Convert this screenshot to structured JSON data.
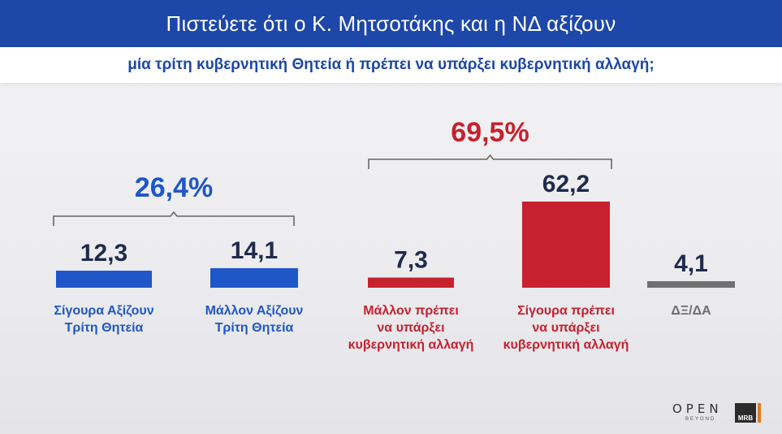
{
  "title": "Πιστεύετε ότι ο Κ. Μητσοτάκης και η ΝΔ αξίζουν",
  "subtitle": "μία τρίτη κυβερνητική Θητεία ή πρέπει να υπάρξει κυβερνητική αλλαγή;",
  "colors": {
    "blue": "#1f56c8",
    "red": "#c7202e",
    "gray": "#6f6f6f",
    "brand": "#1d47a8"
  },
  "chart_data": {
    "type": "bar",
    "categories": [
      [
        "Σίγουρα Αξίζουν",
        "Τρίτη Θητεία"
      ],
      [
        "Μάλλον Αξίζουν",
        "Τρίτη Θητεία"
      ],
      [
        "Μάλλον πρέπει",
        "να υπάρξει",
        "κυβερνητική αλλαγή"
      ],
      [
        "Σίγουρα πρέπει",
        "να υπάρξει",
        "κυβερνητική αλλαγή"
      ],
      [
        "ΔΞ/ΔΑ"
      ]
    ],
    "values": [
      12.3,
      14.1,
      7.3,
      62.2,
      4.1
    ],
    "value_labels": [
      "12,3",
      "14,1",
      "7,3",
      "62,2",
      "4,1"
    ],
    "bar_colors": [
      "blue",
      "blue",
      "red",
      "red",
      "gray"
    ],
    "groups": [
      {
        "label": "26,4%",
        "color": "blue",
        "members": [
          0,
          1
        ]
      },
      {
        "label": "69,5%",
        "color": "red",
        "members": [
          2,
          3
        ]
      }
    ],
    "grid": false,
    "legend": "none"
  },
  "branding": {
    "logo_text": "OPEN",
    "logo_tagline": "BEYOND",
    "partner": "MRB"
  }
}
